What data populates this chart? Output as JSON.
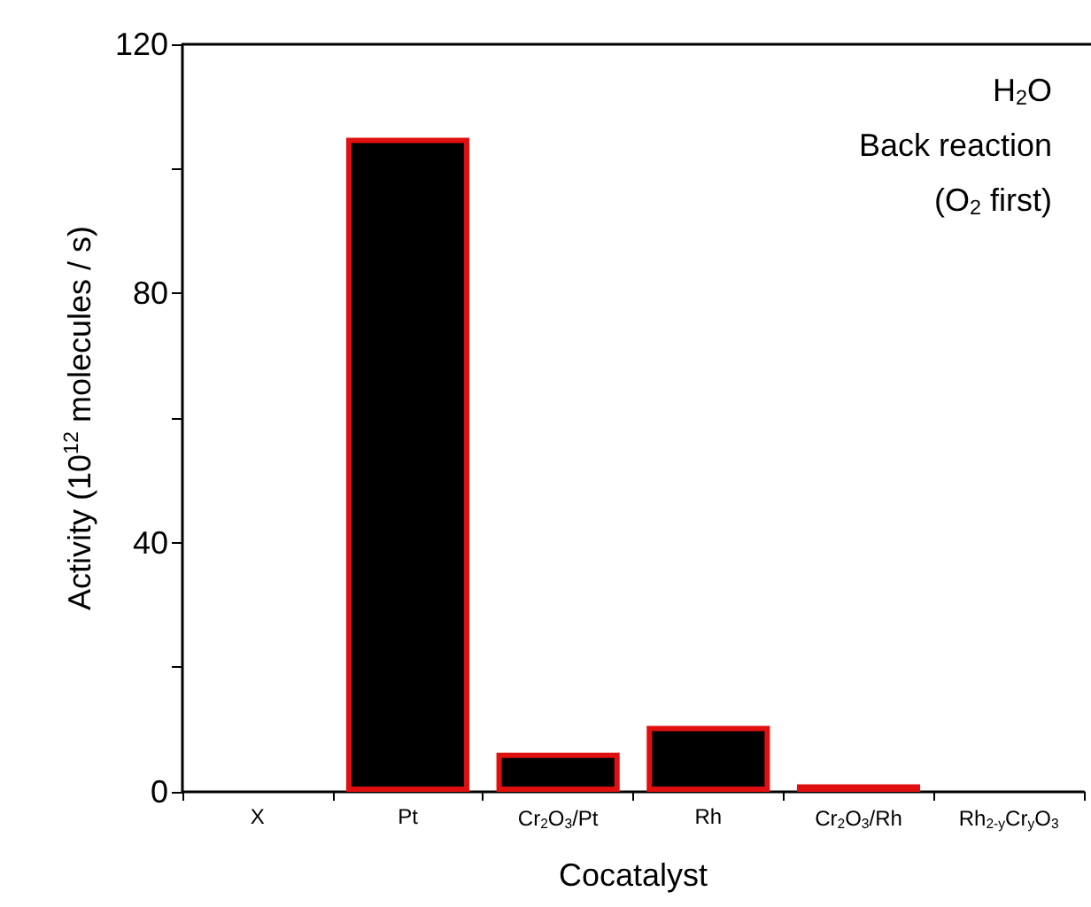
{
  "chart_data": {
    "type": "bar",
    "xlabel": "Cocatalyst",
    "ylabel": "Activity (10$^{12}$ molecules / s)",
    "categories": [
      "X",
      "Pt",
      "Cr$_{2}$O$_{3}$/Pt",
      "Rh",
      "Cr$_{2}$O$_{3}$/Rh",
      "Rh$_{2-y}$Cr$_{y}$O$_{3}$"
    ],
    "values": [
      null,
      105,
      6.3,
      10.6,
      1.2,
      null
    ],
    "color": "#000000",
    "ylim": [
      0,
      120
    ],
    "yticks": [
      0,
      {
        "value": 20,
        "label": null
      },
      40,
      {
        "value": 60,
        "label": null
      },
      80,
      {
        "value": 100,
        "label": null
      },
      120
    ],
    "annotations": [
      "H$_{2}$O",
      "Back reaction",
      "(O$_{2}$ first)"
    ],
    "grid": false
  }
}
